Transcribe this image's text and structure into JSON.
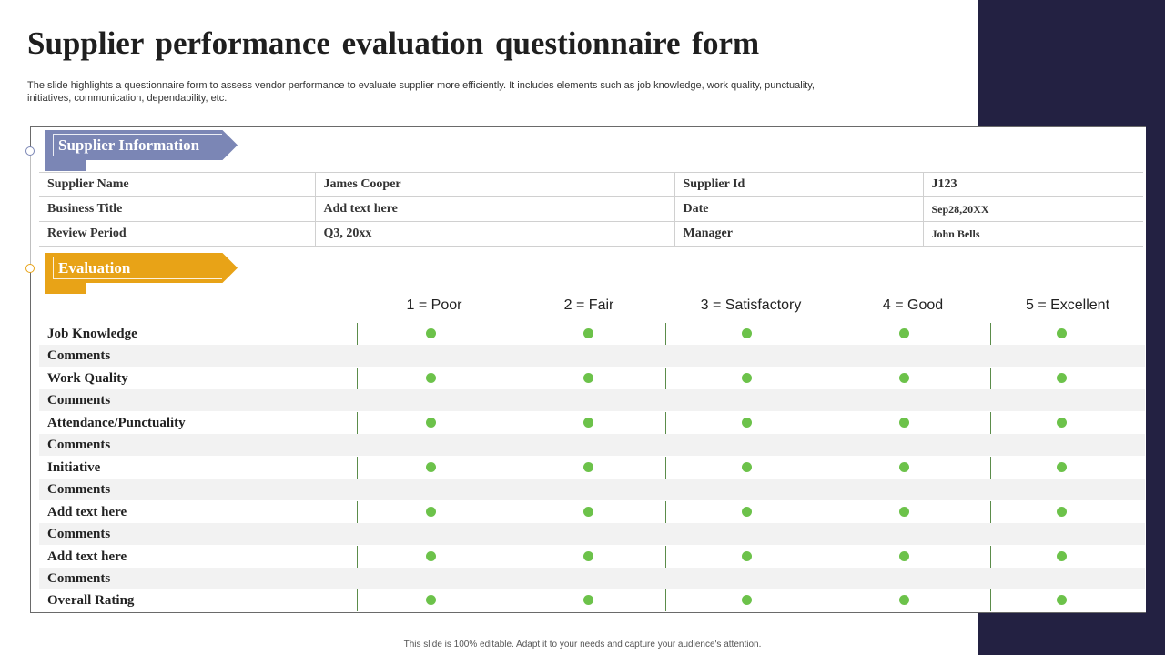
{
  "title": "Supplier performance evaluation questionnaire form",
  "subtitle": "The slide highlights a questionnaire form to assess vendor performance to evaluate supplier more efficiently. It includes elements such as job knowledge, work quality, punctuality, initiatives, communication, dependability, etc.",
  "colors": {
    "supplier_tab": "#7b86b5",
    "evaluation_tab": "#e8a317",
    "dot": "#6cc24a",
    "right_band": "#232142"
  },
  "supplier_section": {
    "label": "Supplier Information",
    "rows": [
      [
        "Supplier Name",
        "James Cooper",
        "Supplier Id",
        "J123"
      ],
      [
        "Business Title",
        "Add text here",
        "Date",
        "Sep28,20XX"
      ],
      [
        "Review Period",
        "Q3, 20xx",
        "Manager",
        "John Bells"
      ]
    ]
  },
  "evaluation_section": {
    "label": "Evaluation",
    "scale": [
      "1 = Poor",
      "2 = Fair",
      "3 = Satisfactory",
      "4 = Good",
      "5 = Excellent"
    ],
    "rows": [
      {
        "label": "Job Knowledge",
        "type": "criterion"
      },
      {
        "label": "Comments",
        "type": "comment"
      },
      {
        "label": "Work Quality",
        "type": "criterion"
      },
      {
        "label": "Comments",
        "type": "comment"
      },
      {
        "label": "Attendance/Punctuality",
        "type": "criterion"
      },
      {
        "label": "Comments",
        "type": "comment"
      },
      {
        "label": "Initiative",
        "type": "criterion"
      },
      {
        "label": "Comments",
        "type": "comment"
      },
      {
        "label": "Add text here",
        "type": "criterion"
      },
      {
        "label": "Comments",
        "type": "comment"
      },
      {
        "label": "Add text here",
        "type": "criterion"
      },
      {
        "label": "Comments",
        "type": "comment"
      },
      {
        "label": "Overall Rating",
        "type": "criterion"
      }
    ]
  },
  "footer": "This slide is 100% editable. Adapt it to your needs and capture your audience's attention."
}
